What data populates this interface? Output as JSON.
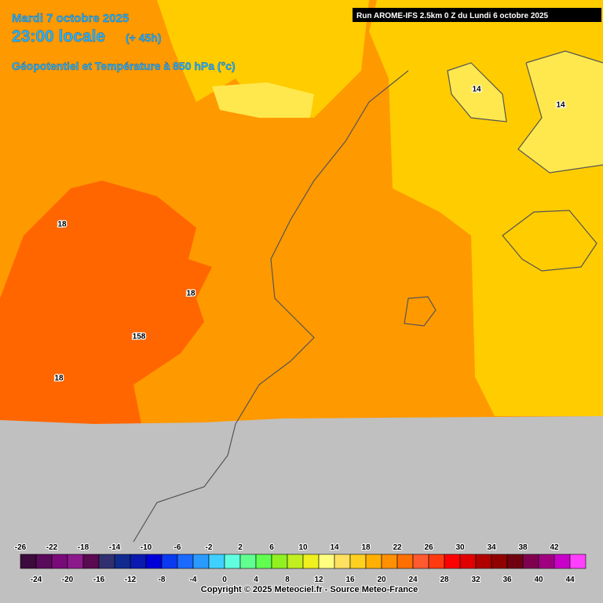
{
  "header": {
    "date": "Mardi 7 octobre 2025",
    "time": "23:00 locale",
    "lead": "(+ 45h)",
    "parameter": "Géopotentiel et Température à 850 hPa (°c)",
    "run": "Run AROME-IFS 2.5km 0 Z du Lundi 6 octobre 2025"
  },
  "contour_labels": [
    "18",
    "18",
    "158",
    "18",
    "14",
    "14"
  ],
  "legend": {
    "values": [
      -26,
      -24,
      -22,
      -20,
      -18,
      -16,
      -14,
      -12,
      -10,
      -8,
      -6,
      -4,
      -2,
      0,
      2,
      4,
      6,
      8,
      10,
      12,
      14,
      16,
      18,
      20,
      22,
      24,
      26,
      28,
      30,
      32,
      34,
      36,
      38,
      40,
      42,
      44
    ],
    "colors": [
      "#3c0a3c",
      "#5a0a5a",
      "#7a0a7a",
      "#8c1a8c",
      "#5a0a50",
      "#303070",
      "#102a90",
      "#0a1ab0",
      "#0000d8",
      "#0a3af0",
      "#1a6aff",
      "#2a9aff",
      "#40d0ff",
      "#60ffe0",
      "#60ff90",
      "#60ff50",
      "#90f020",
      "#c0f020",
      "#f0f020",
      "#ffff80",
      "#ffe060",
      "#ffd020",
      "#ffb000",
      "#ff9000",
      "#ff7000",
      "#ff5a30",
      "#ff3a10",
      "#ff0000",
      "#e00000",
      "#b00000",
      "#900000",
      "#700010",
      "#800050",
      "#a00080",
      "#c800c8",
      "#ff40ff"
    ]
  },
  "footer": {
    "copyright": "Copyright © 2025 Meteociel.fr - Source Meteo-France"
  }
}
